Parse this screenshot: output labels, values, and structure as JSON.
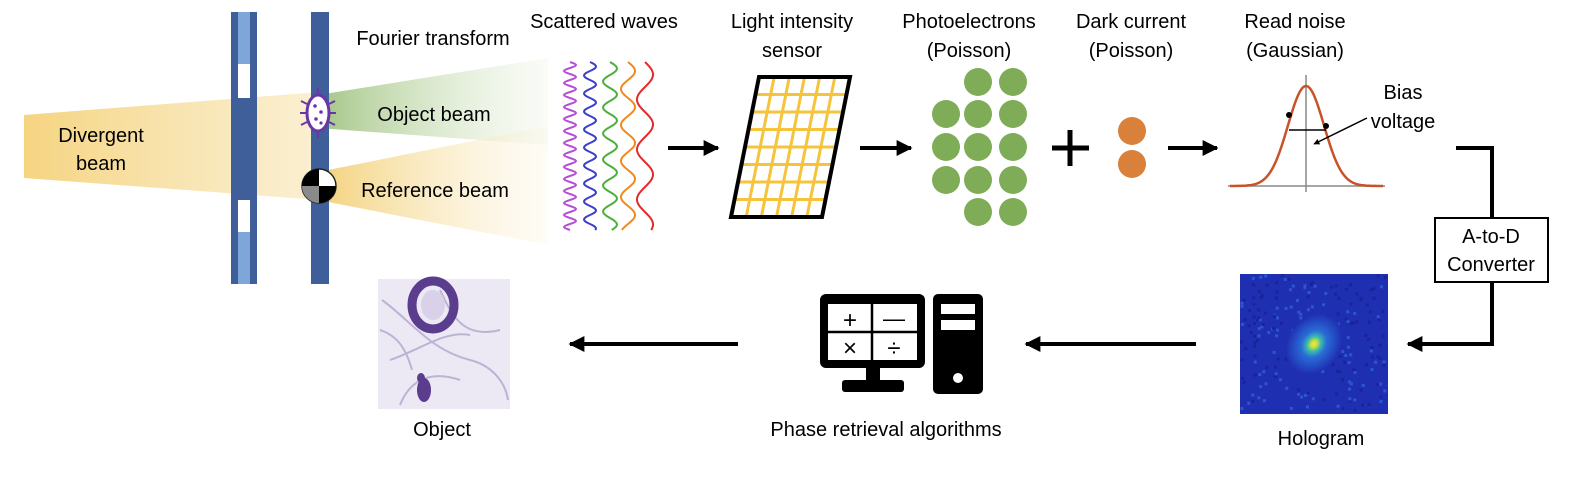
{
  "labels": {
    "divergent_beam": [
      "Divergent",
      "beam"
    ],
    "fourier_transform": "Fourier transform",
    "object_beam": "Object beam",
    "reference_beam": "Reference beam",
    "scattered_waves": "Scattered waves",
    "light_sensor": [
      "Light intensity",
      "sensor"
    ],
    "photoelectrons": [
      "Photoelectrons",
      "(Poisson)"
    ],
    "dark_current": [
      "Dark current",
      "(Poisson)"
    ],
    "read_noise": [
      "Read noise",
      "(Gaussian)"
    ],
    "bias_voltage": [
      "Bias",
      "voltage"
    ],
    "adc": [
      "A-to-D",
      "Converter"
    ],
    "hologram": "Hologram",
    "phase_retrieval": "Phase retrieval algorithms",
    "object": "Object"
  },
  "calculator_symbols": [
    "+",
    "—",
    "×",
    "÷"
  ],
  "colors": {
    "slit_blue": "#3f5f9a",
    "slit_light": "#7fa6d8",
    "beam_yellow": "#f5d27a",
    "beam_green": "#a9c98a",
    "photoelectron_green": "#7fac56",
    "dark_current_orange": "#d9803a",
    "sensor_yellow": "#f6c33d",
    "gaussian_curve": "#c8522a",
    "hologram_bg": "#1f2fb2",
    "stain_purple": "#5a3d8c"
  },
  "wave_colors": [
    "#b74fd4",
    "#3a3fd0",
    "#4caf3a",
    "#f08a1e",
    "#e32b2b"
  ]
}
